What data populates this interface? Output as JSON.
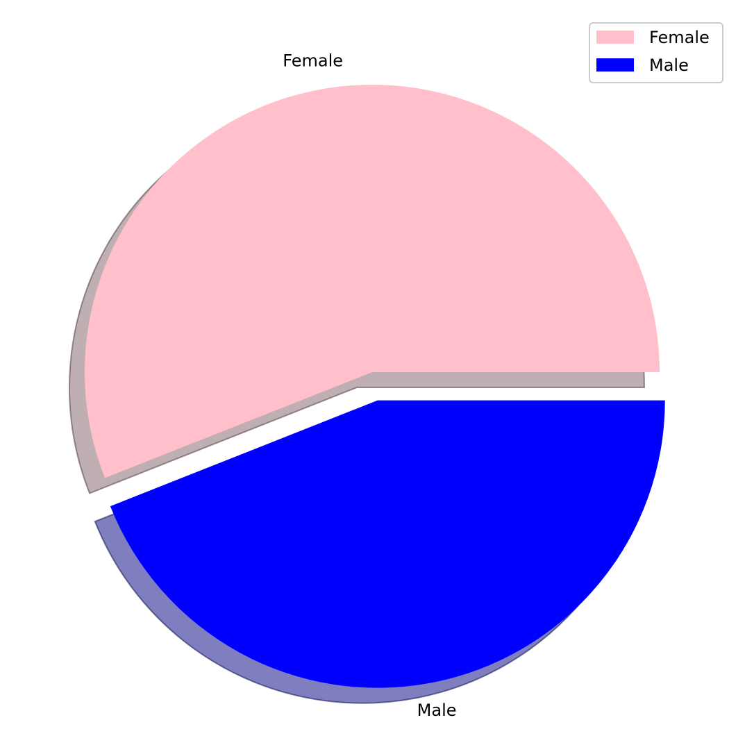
{
  "chart_data": {
    "type": "pie",
    "title": "",
    "labels": [
      "Female",
      "Male"
    ],
    "values": [
      56,
      44
    ],
    "colors": [
      "#ffc0cb",
      "#0000ff"
    ],
    "explode": [
      0,
      0.1
    ],
    "shadow": true,
    "start_angle": 0,
    "legend": {
      "placement": "top-right",
      "entries": [
        "Female",
        "Male"
      ]
    }
  }
}
